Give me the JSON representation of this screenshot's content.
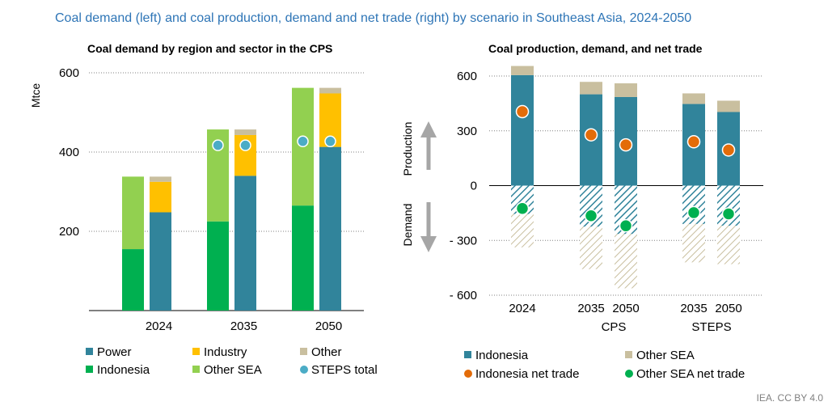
{
  "title": "Coal demand (left) and coal production, demand and net trade (right) by scenario in Southeast Asia, 2024-2050",
  "credit": "IEA. CC BY 4.0",
  "colors": {
    "power": "#31849b",
    "industry": "#ffc000",
    "other": "#c9bf9f",
    "indonesia_demand": "#00b050",
    "other_sea_demand": "#92d050",
    "steps_total": "#4bacc6",
    "indonesia": "#31849b",
    "other_sea": "#c9bf9f",
    "indonesia_net_trade": "#e36c09",
    "other_sea_net_trade": "#00b050"
  },
  "chart_data": [
    {
      "type": "bar",
      "title": "Coal demand by region and sector in the CPS",
      "ylabel": "Mtce",
      "xlabel": "",
      "ylim": [
        0,
        600
      ],
      "yticks": [
        200,
        400,
        600
      ],
      "grid": true,
      "categories": [
        "2024",
        "2035",
        "2050"
      ],
      "stacks": {
        "by_region": [
          {
            "name": "Indonesia",
            "values": [
              155,
              225,
              265
            ]
          },
          {
            "name": "Other SEA",
            "values": [
              183,
              232,
              297
            ]
          }
        ],
        "by_sector": [
          {
            "name": "Power",
            "values": [
              248,
              340,
              413
            ]
          },
          {
            "name": "Industry",
            "values": [
              77,
              103,
              135
            ]
          },
          {
            "name": "Other",
            "values": [
              13,
              14,
              14
            ]
          }
        ]
      },
      "markers": [
        {
          "name": "STEPS total",
          "stack": "by_region",
          "values": [
            null,
            417,
            427
          ]
        },
        {
          "name": "STEPS total",
          "stack": "by_sector",
          "values": [
            null,
            417,
            427
          ]
        }
      ],
      "legend_position": "bottom",
      "legend": [
        "Power",
        "Industry",
        "Other",
        "Indonesia",
        "Other SEA",
        "STEPS total"
      ]
    },
    {
      "type": "bar",
      "title": "Coal production, demand, and net trade",
      "ylabel": "",
      "xlabel": "",
      "ylim": [
        -600,
        650
      ],
      "yticks": [
        600,
        300,
        0,
        -300,
        -600
      ],
      "ytick_labels": [
        "600",
        "300",
        "0",
        "- 300",
        "- 600"
      ],
      "grid": true,
      "arrow_labels": {
        "up": "Production",
        "down": "Demand"
      },
      "groups": [
        {
          "label": "",
          "bars": [
            "2024"
          ]
        },
        {
          "label": "CPS",
          "bars": [
            "2035",
            "2050"
          ]
        },
        {
          "label": "STEPS",
          "bars": [
            "2035",
            "2050"
          ]
        }
      ],
      "categories": [
        "2024",
        "2035",
        "2050",
        "2035",
        "2050"
      ],
      "series": [
        {
          "name": "Indonesia",
          "kind": "production",
          "values": [
            605,
            500,
            485,
            447,
            403
          ]
        },
        {
          "name": "Other SEA",
          "kind": "production",
          "values": [
            50,
            68,
            75,
            58,
            62
          ]
        },
        {
          "name": "Indonesia",
          "kind": "demand",
          "values": [
            -155,
            -225,
            -265,
            -210,
            -220
          ]
        },
        {
          "name": "Other SEA",
          "kind": "demand",
          "values": [
            -183,
            -232,
            -297,
            -210,
            -210
          ]
        }
      ],
      "markers": [
        {
          "name": "Indonesia net trade",
          "values": [
            405,
            278,
            223,
            240,
            195
          ]
        },
        {
          "name": "Other SEA net trade",
          "values": [
            -125,
            -165,
            -220,
            -148,
            -155
          ]
        }
      ],
      "legend_position": "bottom",
      "legend": [
        "Indonesia",
        "Other SEA",
        "Indonesia net trade",
        "Other SEA net trade"
      ]
    }
  ]
}
